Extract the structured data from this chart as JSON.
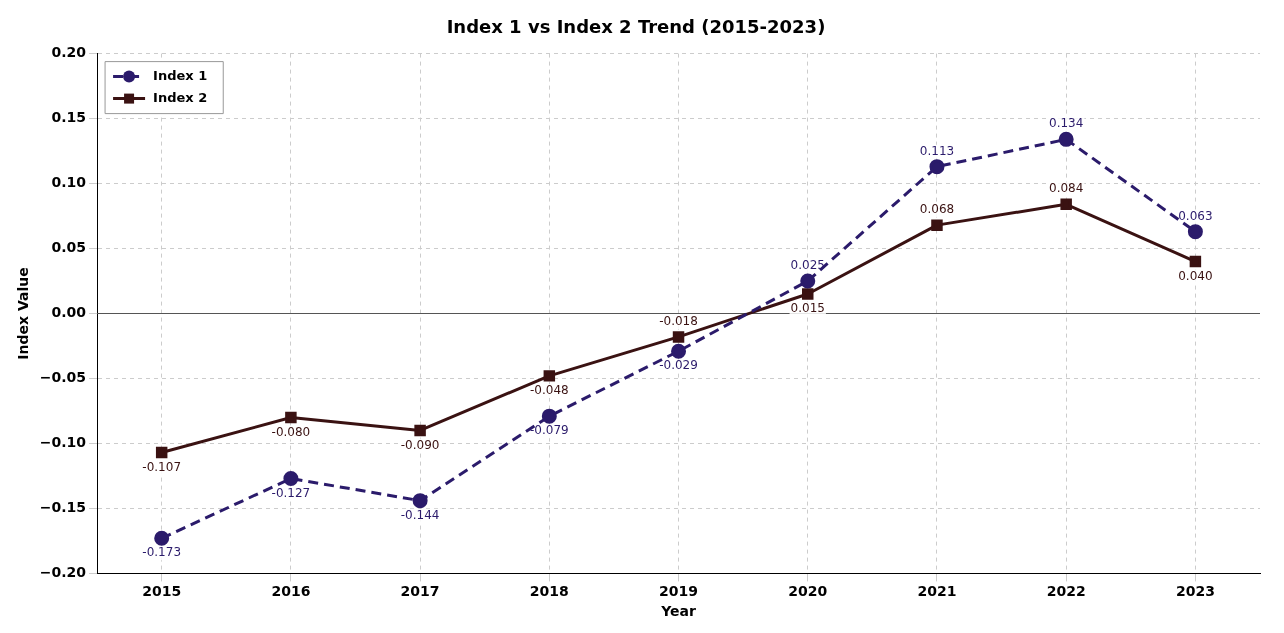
{
  "chart_data": {
    "type": "line",
    "title": "Index 1 vs Index 2 Trend (2015-2023)",
    "xlabel": "Year",
    "ylabel": "Index Value",
    "categories": [
      "2015",
      "2016",
      "2017",
      "2018",
      "2019",
      "2020",
      "2021",
      "2022",
      "2023"
    ],
    "series": [
      {
        "name": "Index 1",
        "color": "#2b1b6b",
        "marker": "circle",
        "line_style": "dashed",
        "values": [
          -0.173,
          -0.127,
          -0.144,
          -0.079,
          -0.029,
          0.025,
          0.113,
          0.134,
          0.063
        ],
        "value_labels": [
          "-0.173",
          "-0.127",
          "-0.144",
          "-0.079",
          "-0.029",
          "0.025",
          "0.113",
          "0.134",
          "0.063"
        ]
      },
      {
        "name": "Index 2",
        "color": "#3a1212",
        "marker": "square",
        "line_style": "solid",
        "values": [
          -0.107,
          -0.08,
          -0.09,
          -0.048,
          -0.018,
          0.015,
          0.068,
          0.084,
          0.04
        ],
        "value_labels": [
          "-0.107",
          "-0.080",
          "-0.090",
          "-0.048",
          "-0.018",
          "0.015",
          "0.068",
          "0.084",
          "0.040"
        ]
      }
    ],
    "ylim": [
      -0.2,
      0.2
    ],
    "yticks": [
      {
        "value": -0.2,
        "label": "−0.20"
      },
      {
        "value": -0.15,
        "label": "−0.15"
      },
      {
        "value": -0.1,
        "label": "−0.10"
      },
      {
        "value": -0.05,
        "label": "−0.05"
      },
      {
        "value": 0,
        "label": "0.00"
      },
      {
        "value": 0.05,
        "label": "0.05"
      },
      {
        "value": 0.1,
        "label": "0.10"
      },
      {
        "value": 0.15,
        "label": "0.15"
      },
      {
        "value": 0.2,
        "label": "0.20"
      }
    ],
    "ref_lines": [
      {
        "axis": "y",
        "value": 0,
        "color": "#555555"
      }
    ],
    "grid": true,
    "legend": "top left"
  }
}
